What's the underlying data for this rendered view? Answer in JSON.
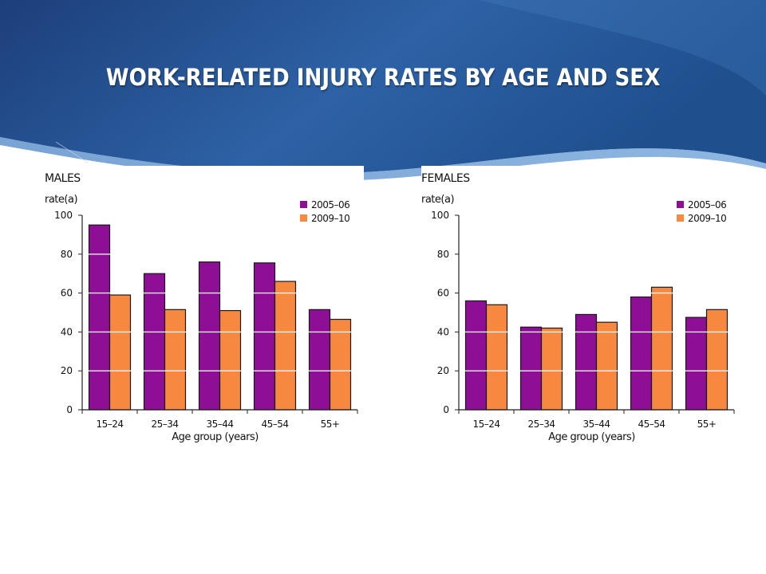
{
  "slide": {
    "title": "WORK-RELATED INJURY RATES BY AGE AND SEX"
  },
  "chart_data": [
    {
      "type": "bar",
      "title": "MALES",
      "ylabel": "rate(a)",
      "xlabel": "Age group (years)",
      "categories": [
        "15–24",
        "25–34",
        "35–44",
        "45–54",
        "55+"
      ],
      "ylim": [
        0,
        100
      ],
      "yticks": [
        0,
        20,
        40,
        60,
        80,
        100
      ],
      "grid": true,
      "legend": "top-right",
      "series": [
        {
          "name": "2005–06",
          "color": "#8e0e96",
          "values": [
            95,
            70,
            76,
            75.5,
            51.5
          ]
        },
        {
          "name": "2009–10",
          "color": "#f7883f",
          "values": [
            59,
            51.5,
            51,
            66,
            46.5
          ]
        }
      ]
    },
    {
      "type": "bar",
      "title": "FEMALES",
      "ylabel": "rate(a)",
      "xlabel": "Age group (years)",
      "categories": [
        "15–24",
        "25–34",
        "35–44",
        "45–54",
        "55+"
      ],
      "ylim": [
        0,
        100
      ],
      "yticks": [
        0,
        20,
        40,
        60,
        80,
        100
      ],
      "grid": true,
      "legend": "top-right",
      "series": [
        {
          "name": "2005–06",
          "color": "#8e0e96",
          "values": [
            56,
            42.5,
            49,
            58,
            47.5
          ]
        },
        {
          "name": "2009–10",
          "color": "#f7883f",
          "values": [
            54,
            42,
            45,
            63,
            51.5
          ]
        }
      ]
    }
  ]
}
